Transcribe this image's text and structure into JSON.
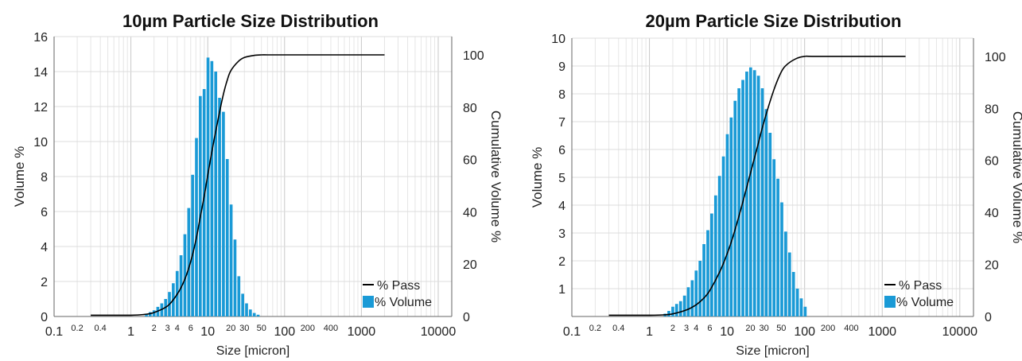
{
  "chart_data": [
    {
      "type": "bar",
      "title": "10µm Particle Size Distribution",
      "xlabel": "Size [micron]",
      "ylabel": "Volume %",
      "y2label": "Cumulative Volume %",
      "xscale": "log",
      "xlim": [
        0.1,
        15000
      ],
      "ylim": [
        0,
        16
      ],
      "y2lim": [
        0,
        107
      ],
      "xtick_labels": [
        "0.1",
        "0.2",
        "0.4",
        "1",
        "2",
        "3",
        "4",
        "6",
        "10",
        "20",
        "30",
        "50",
        "100",
        "200",
        "400",
        "1000",
        "10000"
      ],
      "ytick_labels": [
        "0",
        "2",
        "4",
        "6",
        "8",
        "10",
        "12",
        "14",
        "16"
      ],
      "y2tick_labels": [
        "0",
        "20",
        "40",
        "60",
        "80",
        "100"
      ],
      "grid": true,
      "legend_position": "bottom-right",
      "legend": [
        "% Pass",
        "% Volume"
      ],
      "series": [
        {
          "name": "% Volume",
          "kind": "bar",
          "color": "#1a9ad6",
          "x": [
            1.59,
            1.78,
            2.0,
            2.24,
            2.52,
            2.83,
            3.17,
            3.56,
            4.0,
            4.49,
            5.04,
            5.66,
            6.35,
            7.13,
            8.0,
            8.98,
            10.08,
            11.31,
            12.7,
            14.25,
            16.0,
            17.96,
            20.16,
            22.63,
            25.4,
            28.51,
            32.0,
            35.92,
            40.32,
            45.25
          ],
          "values": [
            0.15,
            0.25,
            0.35,
            0.55,
            0.75,
            1.0,
            1.4,
            1.9,
            2.6,
            3.5,
            4.7,
            6.2,
            8.1,
            10.2,
            12.6,
            13.0,
            14.8,
            14.6,
            14.0,
            12.5,
            11.7,
            9.0,
            6.4,
            4.4,
            2.3,
            1.3,
            0.75,
            0.4,
            0.2,
            0.1
          ]
        },
        {
          "name": "% Pass",
          "kind": "line",
          "color": "#000000",
          "x": [
            0.3,
            1.0,
            1.5,
            2.0,
            3.0,
            4.0,
            5.0,
            6.0,
            7.0,
            8.0,
            9.0,
            10.0,
            11.0,
            12.0,
            14.0,
            16.0,
            18.0,
            20.0,
            25.0,
            30.0,
            40.0,
            50.0,
            60.0,
            100.0,
            2000.0
          ],
          "values": [
            0.5,
            0.5,
            0.8,
            1.5,
            4.0,
            8.5,
            14.0,
            21.0,
            29.0,
            38.0,
            46.0,
            54.0,
            61.0,
            67.0,
            77.0,
            85.0,
            90.5,
            94.0,
            97.5,
            99.0,
            99.8,
            100.0,
            100.0,
            100.0,
            100.0
          ]
        }
      ]
    },
    {
      "type": "bar",
      "title": "20µm Particle Size Distribution",
      "xlabel": "Size [micron]",
      "ylabel": "Volume %",
      "y2label": "Cumulative Volume %",
      "xscale": "log",
      "xlim": [
        0.1,
        15000
      ],
      "ylim": [
        0,
        10
      ],
      "y2lim": [
        0,
        107
      ],
      "xtick_labels": [
        "0.1",
        "0.2",
        "0.4",
        "1",
        "2",
        "3",
        "4",
        "6",
        "10",
        "20",
        "30",
        "50",
        "100",
        "200",
        "400",
        "1000",
        "10000"
      ],
      "ytick_labels": [
        "1",
        "2",
        "3",
        "4",
        "5",
        "6",
        "7",
        "8",
        "9",
        "10"
      ],
      "y2tick_labels": [
        "0",
        "20",
        "40",
        "60",
        "80",
        "100"
      ],
      "grid": true,
      "legend_position": "bottom-right",
      "legend": [
        "% Pass",
        "% Volume"
      ],
      "series": [
        {
          "name": "% Volume",
          "kind": "bar",
          "color": "#1a9ad6",
          "x": [
            1.59,
            1.78,
            2.0,
            2.24,
            2.52,
            2.83,
            3.17,
            3.56,
            4.0,
            4.49,
            5.04,
            5.66,
            6.35,
            7.13,
            8.0,
            8.98,
            10.08,
            11.31,
            12.7,
            14.25,
            16.0,
            17.96,
            20.16,
            22.63,
            25.4,
            28.51,
            32.0,
            35.92,
            40.32,
            45.25,
            50.8,
            57.02,
            64.0,
            71.84,
            80.63,
            90.51,
            101.59
          ],
          "values": [
            0.1,
            0.2,
            0.35,
            0.45,
            0.55,
            0.75,
            1.05,
            1.3,
            1.65,
            2.0,
            2.6,
            3.1,
            3.7,
            4.35,
            5.05,
            5.75,
            6.55,
            7.15,
            7.75,
            8.2,
            8.5,
            8.8,
            8.95,
            8.85,
            8.65,
            8.2,
            7.45,
            6.6,
            5.65,
            4.95,
            4.1,
            3.05,
            2.3,
            1.6,
            1.0,
            0.65,
            0.35
          ]
        },
        {
          "name": "% Pass",
          "kind": "line",
          "color": "#000000",
          "x": [
            0.3,
            1.0,
            1.5,
            2.0,
            3.0,
            4.0,
            5.0,
            6.0,
            8.0,
            10.0,
            12.0,
            15.0,
            20.0,
            25.0,
            30.0,
            40.0,
            50.0,
            60.0,
            80.0,
            100.0,
            150.0,
            2000.0
          ],
          "values": [
            0.5,
            0.5,
            0.6,
            1.0,
            2.5,
            4.5,
            7.0,
            10.0,
            17.0,
            24.0,
            31.0,
            41.0,
            55.0,
            66.0,
            75.0,
            87.0,
            94.0,
            97.0,
            99.3,
            100.0,
            100.0,
            100.0
          ]
        }
      ]
    }
  ]
}
